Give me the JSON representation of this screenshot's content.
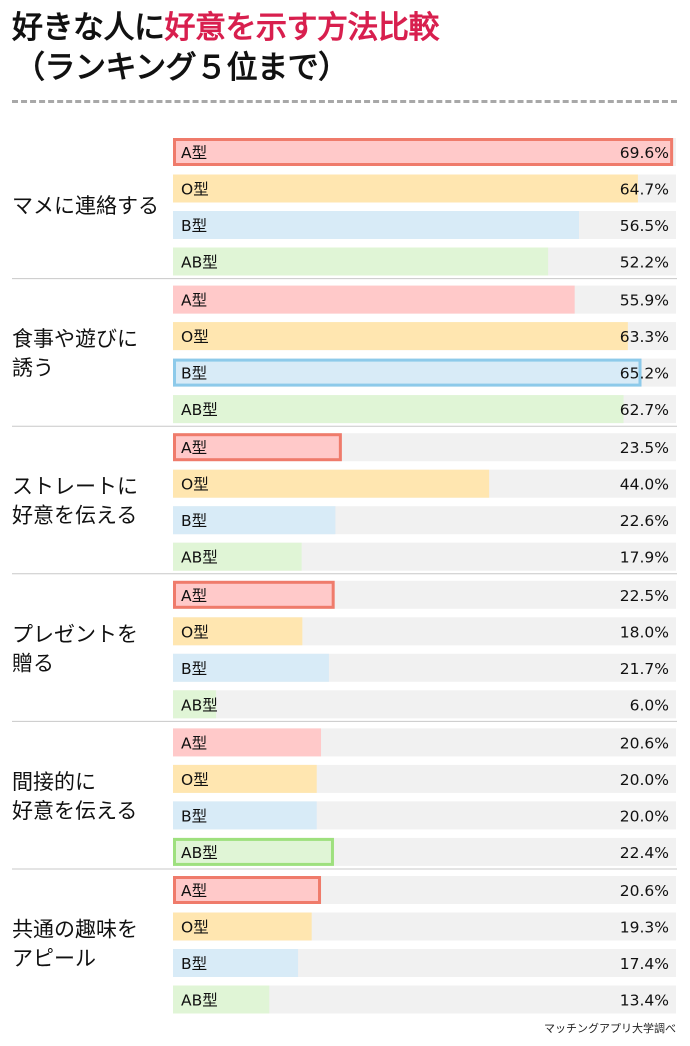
{
  "header": {
    "title_black": "好きな人に",
    "title_red": "好意を示す方法比較",
    "subtitle": "（ランキング５位まで）"
  },
  "source": "マッチングアプリ大学調べ",
  "colors": {
    "accent": "#d81f4e",
    "track": "#f1f1f1",
    "separator": "#c8c8c8"
  },
  "blood_types": [
    {
      "key": "A",
      "label": "A型",
      "fill": "#ffc9c9",
      "highlight": "#ef7b6b"
    },
    {
      "key": "O",
      "label": "O型",
      "fill": "#ffe6b0",
      "highlight": "#f2b640"
    },
    {
      "key": "B",
      "label": "B型",
      "fill": "#d8ebf7",
      "highlight": "#8dcaea"
    },
    {
      "key": "AB",
      "label": "AB型",
      "fill": "#e0f5d6",
      "highlight": "#9ee07e"
    }
  ],
  "chart_data": {
    "type": "bar",
    "orientation": "horizontal",
    "title": "好きな人に好意を示す方法比較（ランキング５位まで）",
    "xlabel": "",
    "ylabel": "",
    "xlim": [
      0,
      70
    ],
    "unit": "%",
    "series_labels": [
      "A型",
      "O型",
      "B型",
      "AB型"
    ],
    "groups": [
      {
        "label": "マメに連絡する",
        "lines": [
          "マメに連絡する"
        ],
        "values": [
          69.6,
          64.7,
          56.5,
          52.2
        ],
        "value_labels": [
          "69.6%",
          "64.7%",
          "56.5%",
          "52.2%"
        ],
        "highlight": 0
      },
      {
        "label": "食事や遊びに誘う",
        "lines": [
          "食事や遊びに",
          "誘う"
        ],
        "values": [
          55.9,
          63.3,
          65.2,
          62.7
        ],
        "value_labels": [
          "55.9%",
          "63.3%",
          "65.2%",
          "62.7%"
        ],
        "highlight": 2
      },
      {
        "label": "ストレートに好意を伝える",
        "lines": [
          "ストレートに",
          "好意を伝える"
        ],
        "values": [
          23.5,
          44.0,
          22.6,
          17.9
        ],
        "value_labels": [
          "23.5%",
          "44.0%",
          "22.6%",
          "17.9%"
        ],
        "highlight": 0
      },
      {
        "label": "プレゼントを贈る",
        "lines": [
          "プレゼントを",
          "贈る"
        ],
        "values": [
          22.5,
          18.0,
          21.7,
          6.0
        ],
        "value_labels": [
          "22.5%",
          "18.0%",
          "21.7%",
          "6.0%"
        ],
        "highlight": 0
      },
      {
        "label": "間接的に好意を伝える",
        "lines": [
          "間接的に",
          "好意を伝える"
        ],
        "values": [
          20.6,
          20.0,
          20.0,
          22.4
        ],
        "value_labels": [
          "20.6%",
          "20.0%",
          "20.0%",
          "22.4%"
        ],
        "highlight": 3
      },
      {
        "label": "共通の趣味をアピール",
        "lines": [
          "共通の趣味を",
          "アピール"
        ],
        "values": [
          20.6,
          19.3,
          17.4,
          13.4
        ],
        "value_labels": [
          "20.6%",
          "19.3%",
          "17.4%",
          "13.4%"
        ],
        "highlight": 0
      }
    ]
  }
}
